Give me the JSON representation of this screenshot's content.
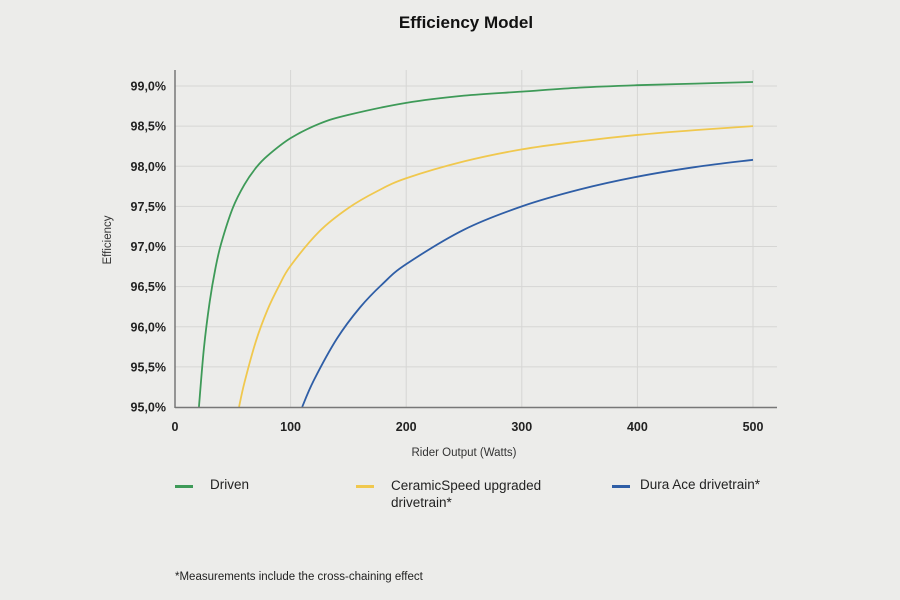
{
  "chart_data": {
    "type": "line",
    "title": "Efficiency Model",
    "xlabel": "Rider Output (Watts)",
    "ylabel": "Efficiency",
    "xlim": [
      0,
      500
    ],
    "ylim": [
      95.0,
      99.0
    ],
    "xticks": [
      "0",
      "100",
      "200",
      "300",
      "400",
      "500"
    ],
    "xtick_values": [
      0,
      100,
      200,
      300,
      400,
      500
    ],
    "yticks": [
      "95,0%",
      "95,5%",
      "96,0%",
      "96,5%",
      "97,0%",
      "97,5%",
      "98,0%",
      "98,5%",
      "99,0%"
    ],
    "ytick_values": [
      95.0,
      95.5,
      96.0,
      96.5,
      97.0,
      97.5,
      98.0,
      98.5,
      99.0
    ],
    "grid": true,
    "legend_position": "bottom",
    "series": [
      {
        "name": "Driven",
        "color": "#3e9a58",
        "x": [
          20.7,
          25,
          30,
          35,
          40,
          50,
          60,
          70,
          80,
          100,
          125,
          150,
          200,
          250,
          300,
          350,
          400,
          450,
          500
        ],
        "y": [
          95.0,
          95.73,
          96.31,
          96.73,
          97.04,
          97.48,
          97.77,
          97.98,
          98.13,
          98.35,
          98.53,
          98.64,
          98.79,
          98.88,
          98.93,
          98.98,
          99.01,
          99.03,
          99.05
        ]
      },
      {
        "name": "CeramicSpeed upgraded drivetrain*",
        "color": "#f0c84e",
        "x": [
          55.4,
          60,
          70,
          80,
          90,
          100,
          125,
          150,
          175,
          200,
          250,
          300,
          350,
          400,
          450,
          500
        ],
        "y": [
          95.0,
          95.3,
          95.82,
          96.21,
          96.51,
          96.76,
          97.19,
          97.48,
          97.69,
          97.85,
          98.06,
          98.21,
          98.31,
          98.39,
          98.45,
          98.5
        ]
      },
      {
        "name": "Dura Ace drivetrain*",
        "color": "#2f5ea6",
        "x": [
          110,
          120,
          140,
          160,
          180,
          200,
          250,
          300,
          350,
          400,
          450,
          500
        ],
        "y": [
          95.0,
          95.33,
          95.85,
          96.24,
          96.54,
          96.78,
          97.21,
          97.5,
          97.71,
          97.87,
          97.99,
          98.08
        ]
      }
    ]
  },
  "footnote": "*Measurements include the cross-chaining effect"
}
